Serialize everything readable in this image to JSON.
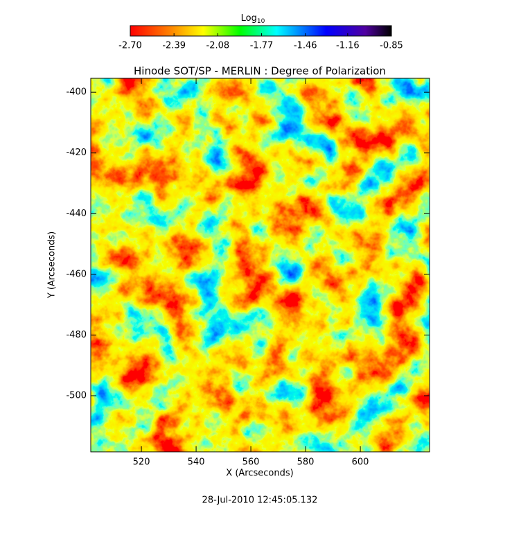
{
  "chart_data": {
    "type": "heatmap",
    "title": "Hinode SOT/SP - MERLIN : Degree of Polarization",
    "colorbar_label": "Log",
    "colorbar_label_sub": "10",
    "clim": [
      -2.7,
      -0.85
    ],
    "cticks": [
      {
        "value": -2.7,
        "label": "-2.70"
      },
      {
        "value": -2.39,
        "label": "-2.39"
      },
      {
        "value": -2.08,
        "label": "-2.08"
      },
      {
        "value": -1.77,
        "label": "-1.77"
      },
      {
        "value": -1.46,
        "label": "-1.46"
      },
      {
        "value": -1.16,
        "label": "-1.16"
      },
      {
        "value": -0.85,
        "label": "-0.85"
      }
    ],
    "x_label": "X (Arcseconds)",
    "y_label": "Y (Arcseconds)",
    "xlim": [
      501.5,
      625.3
    ],
    "xticks": [
      520,
      540,
      560,
      580,
      600
    ],
    "ylim": [
      -518.5,
      -395.4
    ],
    "yticks": [
      -400,
      -420,
      -440,
      -460,
      -480,
      -500
    ],
    "footer": "28-Jul-2010 12:45:05.132"
  }
}
